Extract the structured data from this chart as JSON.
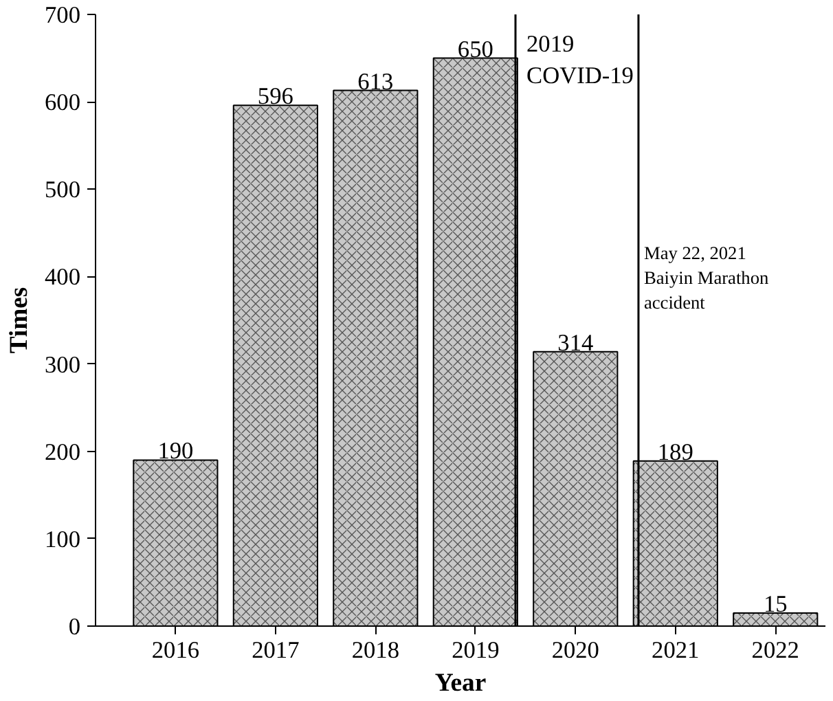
{
  "chart_data": {
    "type": "bar",
    "xlabel": "Year",
    "ylabel": "Times",
    "x": [
      2016,
      2017,
      2018,
      2019,
      2020,
      2021,
      2022
    ],
    "values": [
      190,
      596,
      613,
      650,
      314,
      189,
      15
    ],
    "color": "#c8c8c8",
    "data_labels": true,
    "xlim": [
      2015.2,
      2022.5
    ],
    "xticks": [
      2016,
      2017,
      2018,
      2019,
      2020,
      2021,
      2022
    ],
    "ylim": [
      0,
      700
    ],
    "yticks": [
      0,
      100,
      200,
      300,
      400,
      500,
      600,
      700
    ],
    "grid": false,
    "ref_lines": [
      {
        "axis": "x",
        "value": 2019.4,
        "label": "2019\nCOVID-19",
        "color": "#000000",
        "line_style": "solid"
      },
      {
        "axis": "x",
        "value": 2020.63,
        "label": "May 22, 2021\nBaiyin Marathon\naccident",
        "color": "#000000",
        "line_style": "solid"
      }
    ]
  }
}
